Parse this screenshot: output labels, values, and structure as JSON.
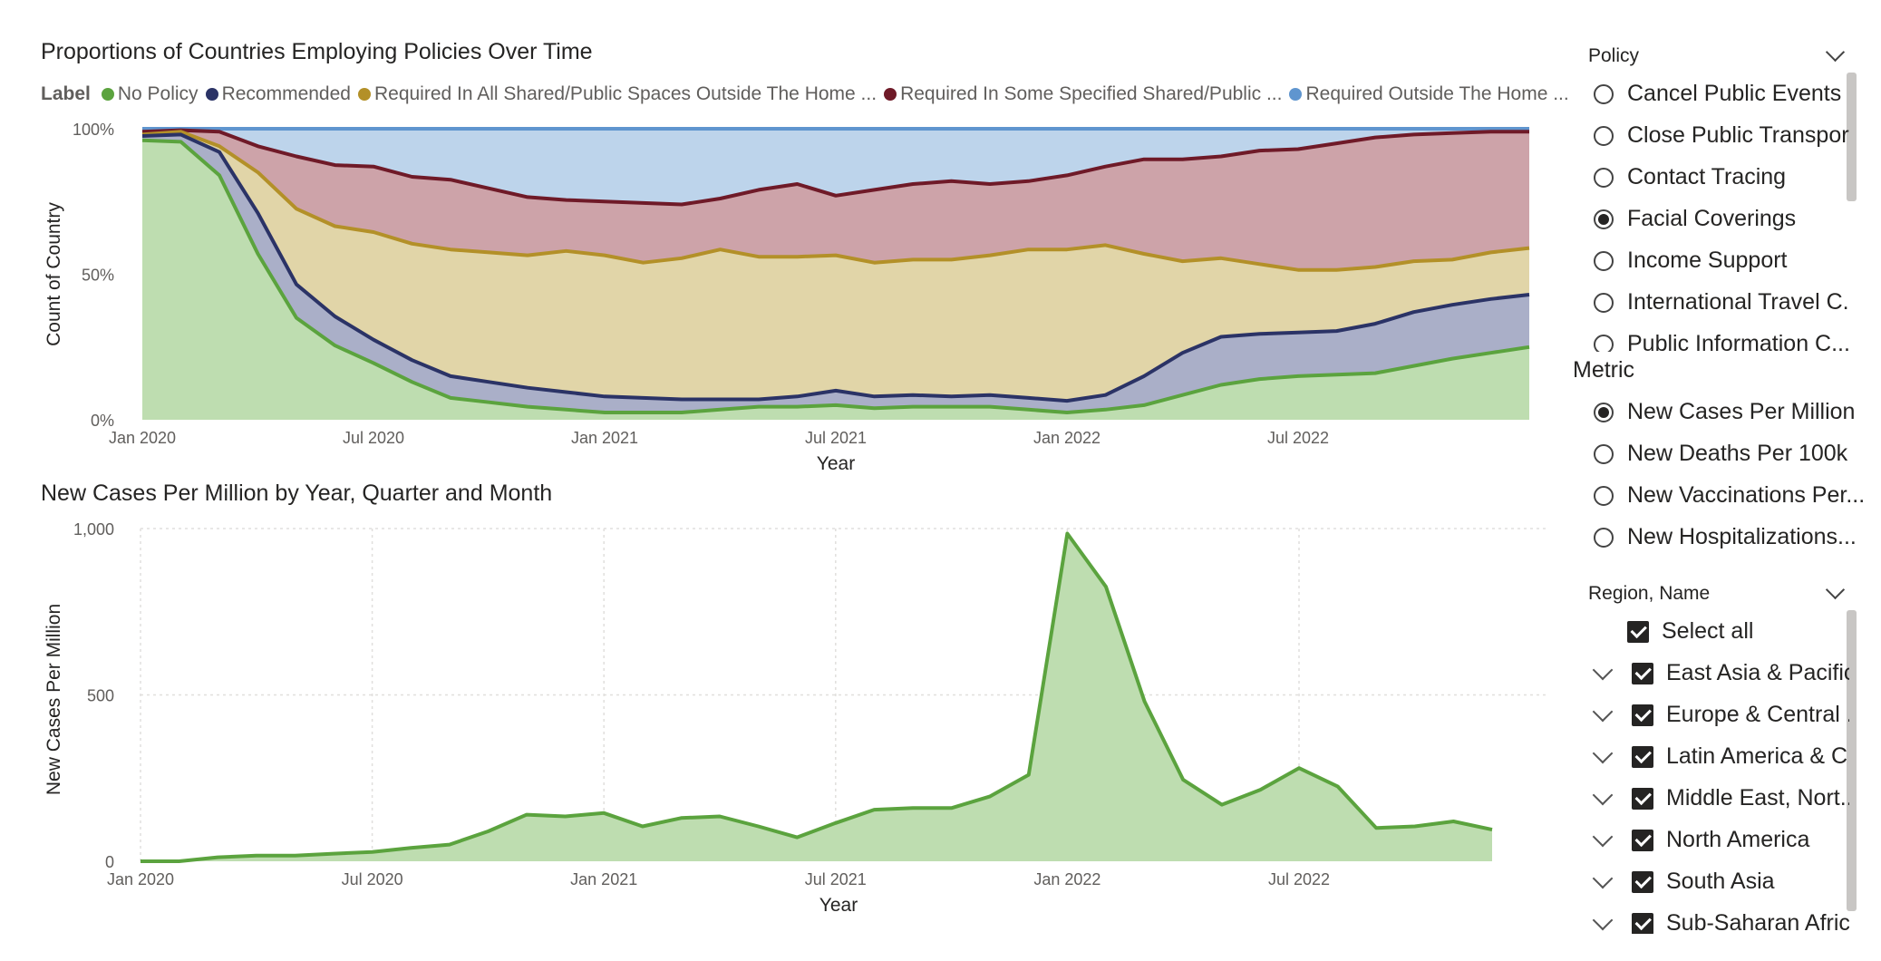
{
  "policy_chart": {
    "title": "Proportions of Countries Employing Policies Over Time",
    "legend_label": "Label",
    "xlabel": "Year",
    "ylabel": "Count of Country",
    "y_ticks": [
      "100%",
      "50%",
      "0%"
    ],
    "x_ticks": [
      "Jan 2020",
      "Jul 2020",
      "Jan 2021",
      "Jul 2021",
      "Jan 2022",
      "Jul 2022"
    ]
  },
  "cases_chart": {
    "title": "New Cases Per Million by Year, Quarter and Month",
    "xlabel": "Year",
    "ylabel": "New Cases Per Million",
    "y_ticks": [
      "1,000",
      "500",
      "0"
    ],
    "x_ticks": [
      "Jan 2020",
      "Jul 2020",
      "Jan 2021",
      "Jul 2021",
      "Jan 2022",
      "Jul 2022"
    ]
  },
  "chart_data": [
    {
      "type": "area",
      "stacked": "percent",
      "title": "Proportions of Countries Employing Policies Over Time",
      "xlabel": "Year",
      "ylabel": "Count of Country",
      "ylim": [
        0,
        100
      ],
      "x_unit": "month",
      "x": [
        "2020-01",
        "2020-02",
        "2020-03",
        "2020-04",
        "2020-05",
        "2020-06",
        "2020-07",
        "2020-08",
        "2020-09",
        "2020-10",
        "2020-11",
        "2020-12",
        "2021-01",
        "2021-02",
        "2021-03",
        "2021-04",
        "2021-05",
        "2021-06",
        "2021-07",
        "2021-08",
        "2021-09",
        "2021-10",
        "2021-11",
        "2021-12",
        "2022-01",
        "2022-02",
        "2022-03",
        "2022-04",
        "2022-05",
        "2022-06",
        "2022-07",
        "2022-08",
        "2022-09",
        "2022-10",
        "2022-11",
        "2022-12",
        "2023-01"
      ],
      "series": [
        {
          "name": "No Policy",
          "color": "#5BA33E",
          "fill": "#BEDDB0",
          "values": [
            96,
            95.5,
            84,
            57,
            35,
            25.5,
            19.5,
            13,
            7.5,
            6,
            4.5,
            3.5,
            2.5,
            2.5,
            2.5,
            3.5,
            4.5,
            4.5,
            5,
            4,
            4.5,
            4.5,
            4.5,
            3.5,
            2.5,
            3.5,
            5,
            8.5,
            12,
            14,
            15,
            15.5,
            16,
            18.5,
            21,
            23,
            25
          ]
        },
        {
          "name": "Recommended",
          "color": "#2B3366",
          "fill": "#AAAFC8",
          "values": [
            97.5,
            98,
            92,
            71,
            46.5,
            35.5,
            27.5,
            20.5,
            15,
            13,
            11,
            9.5,
            8,
            7.5,
            7,
            7,
            7,
            8,
            10,
            8,
            8.5,
            8,
            8.5,
            7.5,
            6.5,
            8.5,
            15,
            23,
            28.5,
            29.5,
            30,
            30.5,
            33,
            37,
            39.5,
            41.5,
            43
          ]
        },
        {
          "name": "Required In All Shared/Public Spaces Outside The Home ...",
          "color": "#B39028",
          "fill": "#E1D5A8",
          "values": [
            98,
            99,
            94,
            85,
            72.5,
            66.5,
            64.5,
            60.5,
            58.5,
            57.5,
            56.5,
            58,
            56.5,
            54,
            55.5,
            58.5,
            56,
            56,
            56.5,
            54,
            55,
            55,
            56.5,
            58.5,
            58.5,
            60,
            57,
            54.5,
            55.5,
            53.5,
            51.5,
            51.5,
            52.5,
            54.5,
            55,
            57.5,
            59
          ]
        },
        {
          "name": "Required In Some Specified Shared/Public ...",
          "color": "#6F1A28",
          "fill": "#CDA3A9",
          "values": [
            99,
            99.5,
            99,
            94,
            90.5,
            87.5,
            87,
            83.5,
            82.5,
            79.5,
            76.5,
            75.5,
            75,
            74.5,
            74,
            76,
            79,
            81,
            77,
            79,
            81,
            82,
            81,
            82,
            84,
            87,
            89.5,
            89.5,
            90.5,
            92.5,
            93,
            95,
            97,
            98,
            98.5,
            99,
            99
          ]
        },
        {
          "name": "Required Outside The Home ...",
          "color": "#5F95CF",
          "fill": "#BDD4EB",
          "values": [
            100,
            100,
            100,
            100,
            100,
            100,
            100,
            100,
            100,
            100,
            100,
            100,
            100,
            100,
            100,
            100,
            100,
            100,
            100,
            100,
            100,
            100,
            100,
            100,
            100,
            100,
            100,
            100,
            100,
            100,
            100,
            100,
            100,
            100,
            100,
            100,
            100
          ]
        }
      ]
    },
    {
      "type": "area",
      "title": "New Cases Per Million by Year, Quarter and Month",
      "xlabel": "Year",
      "ylabel": "New Cases Per Million",
      "ylim": [
        0,
        1000
      ],
      "x_unit": "month",
      "x": [
        "2020-01",
        "2020-02",
        "2020-03",
        "2020-04",
        "2020-05",
        "2020-06",
        "2020-07",
        "2020-08",
        "2020-09",
        "2020-10",
        "2020-11",
        "2020-12",
        "2021-01",
        "2021-02",
        "2021-03",
        "2021-04",
        "2021-05",
        "2021-06",
        "2021-07",
        "2021-08",
        "2021-09",
        "2021-10",
        "2021-11",
        "2021-12",
        "2022-01",
        "2022-02",
        "2022-03",
        "2022-04",
        "2022-05",
        "2022-06",
        "2022-07",
        "2022-08",
        "2022-09",
        "2022-10",
        "2022-11",
        "2022-12"
      ],
      "series": [
        {
          "name": "New Cases Per Million",
          "color": "#5BA33E",
          "fill": "#BEDDB0",
          "values": [
            0,
            0,
            12,
            17,
            17,
            23,
            28,
            40,
            50,
            90,
            140,
            135,
            145,
            105,
            130,
            135,
            105,
            72,
            115,
            155,
            160,
            160,
            195,
            260,
            985,
            825,
            480,
            245,
            170,
            215,
            280,
            225,
            100,
            105,
            120,
            95
          ]
        }
      ]
    }
  ],
  "policy_slicer": {
    "header": "Policy",
    "options": [
      "Cancel Public Events",
      "Close Public Transport",
      "Contact Tracing",
      "Facial Coverings",
      "Income Support",
      "International Travel C...",
      "Public Information C..."
    ],
    "selected": "Facial Coverings"
  },
  "metric_slicer": {
    "header": "Metric",
    "options": [
      "New Cases Per Million",
      "New Deaths Per 100k",
      "New Vaccinations Per...",
      "New Hospitalizations..."
    ],
    "selected": "New Cases Per Million"
  },
  "region_slicer": {
    "header": "Region, Name",
    "select_all": "Select all",
    "items": [
      "East Asia & Pacific",
      "Europe & Central ...",
      "Latin America & C...",
      "Middle East, Nort...",
      "North America",
      "South Asia",
      "Sub-Saharan Africa"
    ]
  },
  "colors": {
    "gridline": "#E1DFDD",
    "axis_text": "#605E5C"
  }
}
